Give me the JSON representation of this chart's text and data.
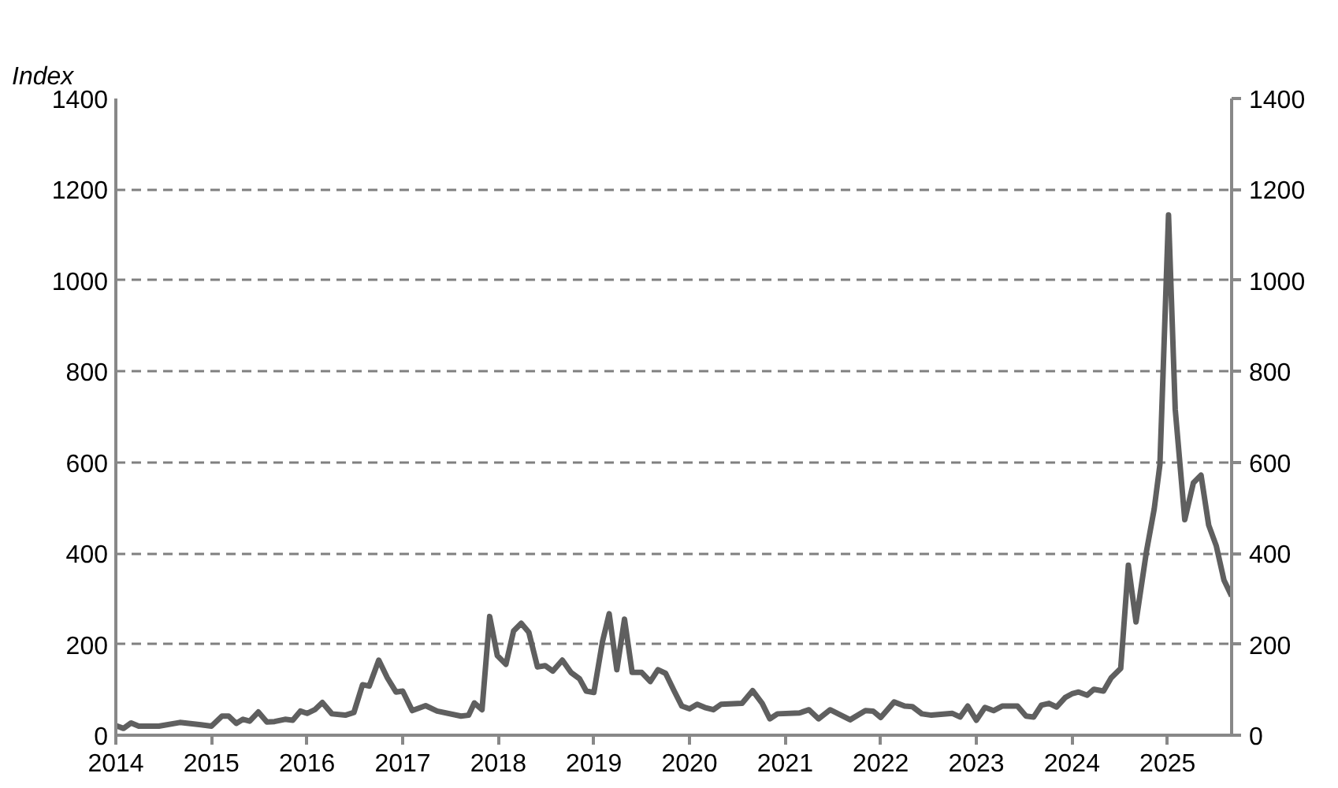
{
  "chart_data": {
    "type": "line",
    "ylabel": "Index",
    "xlim": [
      2014,
      2025.67
    ],
    "xticks": [
      2014,
      2015,
      2016,
      2017,
      2018,
      2019,
      2020,
      2021,
      2022,
      2023,
      2024,
      2025
    ],
    "ylim": [
      0,
      1400
    ],
    "yticks": [
      0,
      200,
      400,
      600,
      800,
      1000,
      1200,
      1400
    ],
    "y2lim": [
      0,
      1400
    ],
    "y2ticks": [
      0,
      200,
      400,
      600,
      800,
      1000,
      1200,
      1400
    ],
    "grid": "y",
    "series": [
      {
        "color": "#5f5f5f",
        "x": [
          2014.0,
          2014.08,
          2014.16,
          2014.24,
          2014.45,
          2014.67,
          2014.89,
          2015.0,
          2015.11,
          2015.18,
          2015.26,
          2015.33,
          2015.4,
          2015.49,
          2015.58,
          2015.66,
          2015.77,
          2015.85,
          2015.93,
          2016.0,
          2016.08,
          2016.16,
          2016.26,
          2016.4,
          2016.49,
          2016.58,
          2016.65,
          2016.75,
          2016.84,
          2016.93,
          2017.0,
          2017.1,
          2017.24,
          2017.36,
          2017.61,
          2017.69,
          2017.75,
          2017.83,
          2017.91,
          2017.99,
          2018.08,
          2018.16,
          2018.24,
          2018.32,
          2018.41,
          2018.49,
          2018.57,
          2018.67,
          2018.76,
          2018.85,
          2018.92,
          2019.0,
          2019.09,
          2019.16,
          2019.24,
          2019.32,
          2019.4,
          2019.5,
          2019.59,
          2019.67,
          2019.75,
          2019.84,
          2019.92,
          2020.0,
          2020.08,
          2020.16,
          2020.25,
          2020.33,
          2020.55,
          2020.66,
          2020.76,
          2020.84,
          2020.92,
          2021.15,
          2021.25,
          2021.35,
          2021.47,
          2021.68,
          2021.84,
          2021.92,
          2022.0,
          2022.14,
          2022.25,
          2022.33,
          2022.43,
          2022.53,
          2022.75,
          2022.83,
          2022.91,
          2023.0,
          2023.09,
          2023.18,
          2023.27,
          2023.43,
          2023.52,
          2023.6,
          2023.68,
          2023.76,
          2023.84,
          2023.93,
          2024.0,
          2024.07,
          2024.16,
          2024.23,
          2024.33,
          2024.41,
          2024.51,
          2024.59,
          2024.67,
          2024.78,
          2024.86,
          2024.92,
          2025.01,
          2025.08,
          2025.18,
          2025.27,
          2025.35,
          2025.43,
          2025.51,
          2025.59,
          2025.67
        ],
        "values": [
          21,
          15,
          27,
          20,
          20,
          28,
          23,
          20,
          42,
          42,
          26,
          35,
          31,
          51,
          29,
          30,
          35,
          33,
          53,
          48,
          56,
          72,
          47,
          44,
          50,
          111,
          108,
          165,
          126,
          95,
          97,
          54,
          65,
          53,
          42,
          44,
          71,
          56,
          261,
          175,
          156,
          229,
          246,
          226,
          150,
          153,
          141,
          165,
          138,
          124,
          97,
          94,
          206,
          267,
          144,
          255,
          138,
          138,
          118,
          144,
          136,
          97,
          64,
          58,
          68,
          61,
          56,
          68,
          70,
          98,
          70,
          36,
          47,
          49,
          56,
          36,
          56,
          34,
          54,
          53,
          39,
          73,
          64,
          63,
          47,
          44,
          48,
          40,
          64,
          33,
          61,
          54,
          64,
          64,
          42,
          40,
          66,
          70,
          62,
          83,
          91,
          95,
          88,
          101,
          97,
          126,
          147,
          374,
          249,
          405,
          497,
          595,
          1144,
          717,
          474,
          555,
          572,
          462,
          416,
          341,
          306
        ]
      }
    ]
  }
}
